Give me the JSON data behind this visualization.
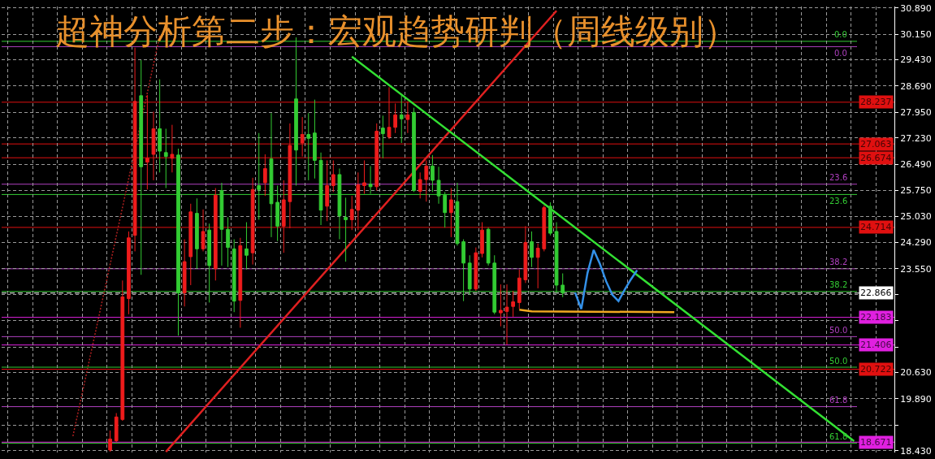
{
  "chart_data": {
    "type": "candlestick",
    "title": "超神分析第二步：宏观趋势研判（周线级别）",
    "categories": [
      null,
      null,
      null,
      null,
      null,
      null,
      null,
      null,
      null,
      null,
      null,
      null,
      null,
      null,
      null,
      null,
      null,
      null,
      null,
      null,
      null,
      null,
      null,
      null,
      null,
      null,
      null,
      null,
      null,
      null,
      null,
      null,
      null,
      null,
      null,
      null,
      null,
      null,
      null,
      null,
      null,
      null,
      null,
      null,
      null,
      null,
      null,
      null,
      null,
      null,
      null,
      null,
      null,
      null,
      null,
      null,
      null,
      null,
      null,
      null,
      null,
      null,
      null,
      null,
      null,
      null,
      null,
      null,
      null,
      null,
      null,
      null,
      null,
      null,
      null,
      null,
      null,
      null,
      null,
      null,
      null,
      null,
      null,
      null,
      null,
      null,
      null,
      null,
      null,
      null,
      null,
      null,
      null,
      null,
      null,
      null,
      null,
      null,
      null,
      null,
      null,
      null,
      null,
      null,
      null,
      null,
      null,
      null,
      null,
      null,
      null,
      null,
      null,
      null,
      null,
      null,
      null,
      null,
      null,
      null,
      null,
      null,
      null,
      null,
      null,
      null,
      null,
      null,
      null,
      null,
      null,
      null,
      null,
      null,
      null,
      null,
      null,
      null,
      null,
      null,
      null,
      null,
      null,
      null
    ],
    "ohlc": [
      null,
      null,
      null,
      null,
      null,
      null,
      null,
      null,
      null,
      null,
      null,
      null,
      null,
      null,
      null,
      null,
      null,
      [
        18.45,
        19.0,
        18.4,
        18.76
      ],
      [
        18.71,
        19.49,
        18.67,
        19.38
      ],
      [
        19.31,
        23.22,
        19.27,
        22.76
      ],
      [
        22.71,
        24.6,
        22.27,
        24.42
      ],
      [
        24.49,
        29.77,
        24.04,
        28.26
      ],
      [
        28.42,
        29.42,
        23.38,
        26.42
      ],
      [
        26.55,
        28.44,
        25.78,
        26.66
      ],
      [
        26.77,
        27.97,
        26.04,
        27.49
      ],
      [
        27.49,
        28.88,
        26.26,
        26.86
      ],
      [
        26.82,
        27.49,
        25.82,
        26.71
      ],
      [
        26.66,
        27.6,
        26.26,
        26.77
      ],
      [
        26.75,
        26.93,
        21.67,
        22.87
      ],
      [
        22.87,
        24.38,
        22.49,
        23.75
      ],
      [
        23.89,
        25.38,
        23.09,
        25.15
      ],
      [
        25.11,
        25.53,
        23.55,
        24.11
      ],
      [
        24.11,
        25.22,
        24.04,
        24.6
      ],
      [
        24.64,
        24.82,
        22.6,
        23.64
      ],
      [
        23.55,
        25.82,
        23.22,
        25.62
      ],
      [
        25.75,
        25.97,
        23.64,
        24.66
      ],
      [
        24.66,
        25.0,
        23.6,
        24.15
      ],
      [
        24.11,
        24.38,
        22.33,
        22.64
      ],
      [
        22.66,
        24.42,
        21.89,
        24.2
      ],
      [
        24.11,
        24.86,
        23.53,
        23.93
      ],
      [
        24.0,
        26.11,
        23.67,
        25.78
      ],
      [
        25.89,
        27.37,
        24.93,
        25.78
      ],
      [
        25.97,
        26.77,
        25.6,
        26.37
      ],
      [
        26.64,
        27.93,
        24.44,
        25.38
      ],
      [
        25.42,
        25.89,
        24.33,
        24.75
      ],
      [
        24.75,
        26.04,
        24.0,
        25.49
      ],
      [
        25.44,
        27.64,
        24.69,
        27.02
      ],
      [
        28.33,
        30.06,
        25.89,
        26.89
      ],
      [
        27.09,
        27.82,
        26.71,
        27.33
      ],
      [
        27.33,
        27.93,
        26.04,
        27.22
      ],
      [
        27.37,
        28.31,
        26.09,
        26.6
      ],
      [
        26.6,
        26.82,
        24.78,
        25.2
      ],
      [
        25.31,
        26.6,
        24.89,
        25.89
      ],
      [
        25.89,
        26.6,
        25.71,
        26.2
      ],
      [
        26.2,
        26.37,
        24.38,
        25.04
      ],
      [
        25.0,
        25.55,
        23.75,
        24.93
      ],
      [
        24.93,
        25.6,
        24.64,
        25.22
      ],
      [
        25.2,
        26.26,
        24.64,
        25.91
      ],
      [
        25.89,
        26.6,
        25.66,
        25.97
      ],
      [
        25.93,
        26.44,
        25.66,
        25.86
      ],
      [
        25.86,
        27.64,
        25.75,
        27.42
      ],
      [
        27.51,
        27.86,
        26.66,
        27.35
      ],
      [
        27.26,
        28.66,
        27.2,
        27.53
      ],
      [
        27.53,
        28.2,
        27.37,
        27.88
      ],
      [
        27.88,
        28.48,
        27.09,
        27.77
      ],
      [
        27.75,
        28.26,
        27.37,
        27.88
      ],
      [
        27.95,
        28.08,
        25.71,
        25.75
      ],
      [
        25.73,
        26.26,
        25.53,
        26.06
      ],
      [
        26.06,
        26.6,
        25.44,
        26.44
      ],
      [
        26.44,
        26.75,
        25.71,
        26.04
      ],
      [
        26.04,
        26.42,
        25.38,
        25.6
      ],
      [
        25.62,
        25.71,
        24.71,
        25.13
      ],
      [
        25.13,
        25.82,
        24.44,
        25.49
      ],
      [
        25.44,
        25.97,
        24.2,
        24.26
      ],
      [
        24.31,
        24.38,
        22.64,
        23.71
      ],
      [
        23.71,
        23.93,
        22.82,
        22.98
      ],
      [
        22.98,
        24.15,
        22.93,
        24.0
      ],
      [
        23.98,
        24.86,
        23.87,
        24.64
      ],
      [
        24.66,
        24.71,
        23.64,
        23.71
      ],
      [
        23.71,
        23.93,
        22.27,
        22.33
      ],
      [
        22.31,
        23.11,
        21.93,
        22.38
      ],
      [
        22.35,
        23.11,
        21.42,
        22.47
      ],
      [
        22.49,
        22.93,
        22.2,
        22.62
      ],
      [
        22.6,
        23.53,
        22.42,
        23.29
      ],
      [
        23.24,
        24.75,
        23.15,
        24.29
      ],
      [
        24.31,
        24.6,
        23.6,
        23.87
      ],
      [
        23.87,
        24.26,
        23.0,
        24.13
      ],
      [
        24.11,
        25.33,
        24.04,
        25.27
      ],
      [
        25.31,
        25.42,
        24.49,
        24.55
      ],
      [
        24.6,
        24.86,
        22.87,
        23.09
      ],
      [
        23.09,
        23.42,
        22.75,
        22.87
      ],
      null,
      null,
      null,
      null,
      null,
      null,
      null,
      null,
      null,
      null,
      null,
      null,
      null,
      null,
      null,
      null,
      null,
      null,
      null,
      null,
      null,
      null,
      null,
      null,
      null,
      null,
      null,
      null,
      null,
      null,
      null,
      null,
      null,
      null,
      null,
      null,
      null,
      null,
      null,
      null,
      null,
      null,
      null,
      null,
      null,
      null,
      null,
      null,
      null,
      null,
      null,
      null,
      null
    ],
    "colors": [
      null,
      null,
      null,
      null,
      null,
      null,
      null,
      null,
      null,
      null,
      null,
      null,
      null,
      null,
      null,
      null,
      null,
      "#ee1c1c",
      "#ee1c1c",
      "#ee1c1c",
      "#ee1c1c",
      "#ee1c1c",
      "#33cc33",
      "#ee1c1c",
      "#ee1c1c",
      "#33cc33",
      "#33cc33",
      "#ee1c1c",
      "#33cc33",
      "#ee1c1c",
      "#ee1c1c",
      "#33cc33",
      "#ee1c1c",
      "#33cc33",
      "#ee1c1c",
      "#33cc33",
      "#33cc33",
      "#33cc33",
      "#ee1c1c",
      "#33cc33",
      "#ee1c1c",
      "#33cc33",
      "#ee1c1c",
      "#33cc33",
      "#33cc33",
      "#ee1c1c",
      "#ee1c1c",
      "#33cc33",
      "#ee1c1c",
      "#33cc33",
      "#33cc33",
      "#33cc33",
      "#ee1c1c",
      "#ee1c1c",
      "#33cc33",
      "#33cc33",
      "#ee1c1c",
      "#ee1c1c",
      "#ee1c1c",
      "#33cc33",
      "#ee1c1c",
      "#33cc33",
      "#ee1c1c",
      "#ee1c1c",
      "#33cc33",
      "#ee1c1c",
      "#33cc33",
      "#ee1c1c",
      "#ee1c1c",
      "#33cc33",
      "#33cc33",
      "#33cc33",
      "#ee1c1c",
      "#33cc33",
      "#33cc33",
      "#33cc33",
      "#ee1c1c",
      "#ee1c1c",
      "#33cc33",
      "#33cc33",
      "#ee1c1c",
      "#ee1c1c",
      "#ee1c1c",
      "#ee1c1c",
      "#ee1c1c",
      "#33cc33",
      "#ee1c1c",
      "#ee1c1c",
      "#33cc33",
      "#33cc33",
      "#33cc33",
      null,
      null,
      null,
      null,
      null,
      null,
      null,
      null,
      null,
      null,
      null,
      null,
      null,
      null,
      null,
      null,
      null,
      null,
      null,
      null,
      null,
      null,
      null,
      null,
      null,
      null,
      null,
      null,
      null,
      null,
      null,
      null,
      null,
      null,
      null,
      null,
      null,
      null,
      null,
      null,
      null,
      null,
      null,
      null,
      null,
      null,
      null,
      null,
      null,
      null,
      null,
      null,
      null
    ],
    "series": [
      {
        "type": "line",
        "color": "#b02020",
        "line_style": "dotted",
        "values": [
          null,
          null,
          null,
          null,
          null,
          null,
          null,
          null,
          null,
          null,
          null,
          18.84,
          null,
          null,
          null,
          null,
          null,
          null,
          null,
          null,
          null,
          null,
          null,
          null,
          null,
          30.11,
          null,
          null,
          null,
          null,
          null,
          null,
          null,
          null,
          null,
          null,
          null,
          null,
          null,
          null,
          null,
          null,
          null,
          null,
          null,
          null,
          null,
          null,
          null,
          null,
          null,
          null,
          null,
          null,
          null,
          null,
          null,
          null,
          null,
          null,
          null,
          null,
          null,
          null,
          null,
          null,
          null,
          null,
          null,
          null,
          null,
          null,
          null,
          null,
          null,
          null,
          null,
          null,
          null,
          null,
          null,
          null,
          null,
          null,
          null,
          null,
          null,
          null,
          null,
          null,
          null,
          null,
          null,
          null,
          null,
          null,
          null,
          null,
          null,
          null,
          null,
          null,
          null,
          null,
          null,
          null,
          null,
          null,
          null,
          null,
          null,
          null,
          null,
          null,
          null,
          null,
          null,
          null,
          null,
          null,
          null,
          null,
          null,
          null,
          null,
          null,
          null,
          null,
          null,
          null,
          null,
          null,
          null,
          null,
          null,
          null,
          null,
          null,
          null,
          null,
          null,
          null,
          null,
          null
        ]
      },
      {
        "type": "line",
        "color": "#e02020",
        "line_style": "solid",
        "values": [
          null,
          null,
          null,
          null,
          null,
          null,
          null,
          null,
          null,
          null,
          null,
          null,
          null,
          null,
          null,
          null,
          null,
          null,
          null,
          null,
          null,
          null,
          null,
          null,
          null,
          null,
          18.4,
          null,
          null,
          null,
          null,
          null,
          null,
          null,
          null,
          null,
          null,
          null,
          null,
          null,
          null,
          null,
          null,
          null,
          null,
          null,
          null,
          null,
          null,
          null,
          null,
          null,
          null,
          null,
          null,
          null,
          null,
          null,
          null,
          null,
          null,
          null,
          null,
          null,
          null,
          null,
          null,
          null,
          null,
          null,
          null,
          null,
          null,
          null,
          null,
          null,
          null,
          null,
          null,
          null,
          null,
          null,
          null,
          null,
          null,
          null,
          null,
          null,
          null,
          30.81,
          null,
          null,
          null,
          null,
          null,
          null,
          null,
          null,
          null,
          null,
          null,
          null,
          null,
          null,
          null,
          null,
          null,
          null,
          null,
          null,
          null,
          null,
          null,
          null,
          null,
          null,
          null,
          null,
          null,
          null,
          null,
          null,
          null,
          null,
          null,
          null,
          null,
          null,
          null,
          null,
          null,
          null,
          null,
          null,
          null,
          null,
          null,
          null,
          null,
          null,
          null,
          null,
          null,
          null
        ]
      },
      {
        "type": "line",
        "color": "#33e033",
        "line_style": "solid",
        "values": [
          null,
          null,
          null,
          null,
          null,
          null,
          null,
          null,
          null,
          null,
          null,
          null,
          null,
          null,
          null,
          null,
          null,
          null,
          null,
          null,
          null,
          null,
          null,
          null,
          null,
          null,
          null,
          null,
          null,
          null,
          null,
          null,
          null,
          null,
          null,
          null,
          null,
          null,
          null,
          null,
          null,
          null,
          null,
          null,
          null,
          null,
          null,
          null,
          null,
          null,
          null,
          null,
          null,
          null,
          null,
          null,
          29.52,
          null,
          null,
          null,
          null,
          null,
          null,
          null,
          null,
          null,
          null,
          null,
          null,
          null,
          null,
          null,
          null,
          null,
          null,
          null,
          null,
          null,
          null,
          null,
          null,
          null,
          null,
          null,
          null,
          null,
          null,
          null,
          null,
          null,
          null,
          null,
          null,
          null,
          null,
          null,
          null,
          null,
          null,
          null,
          null,
          null,
          null,
          null,
          null,
          null,
          null,
          null,
          null,
          null,
          null,
          null,
          null,
          null,
          null,
          null,
          null,
          null,
          null,
          null,
          null,
          null,
          null,
          null,
          null,
          null,
          null,
          null,
          null,
          null,
          null,
          null,
          null,
          null,
          null,
          null,
          null,
          18.7,
          null,
          null,
          null,
          null,
          null,
          null
        ]
      },
      {
        "type": "line",
        "color": "#f0a820",
        "line_style": "solid",
        "values": [
          null,
          null,
          null,
          null,
          null,
          null,
          null,
          null,
          null,
          null,
          null,
          null,
          null,
          null,
          null,
          null,
          null,
          null,
          null,
          null,
          null,
          null,
          null,
          null,
          null,
          null,
          null,
          null,
          null,
          null,
          null,
          null,
          null,
          null,
          null,
          null,
          null,
          null,
          null,
          null,
          null,
          null,
          null,
          null,
          null,
          null,
          null,
          null,
          null,
          null,
          null,
          null,
          null,
          null,
          null,
          null,
          null,
          null,
          null,
          null,
          null,
          null,
          null,
          null,
          null,
          null,
          null,
          null,
          null,
          null,
          null,
          null,
          null,
          null,
          null,
          null,
          null,
          null,
          null,
          null,
          null,
          null,
          null,
          22.4,
          null,
          22.35,
          null,
          null,
          null,
          null,
          null,
          null,
          null,
          null,
          null,
          null,
          null,
          null,
          null,
          null,
          null,
          null,
          null,
          null,
          null,
          null,
          null,
          null,
          22.33,
          null,
          null,
          null,
          null,
          null,
          null,
          null,
          null,
          null,
          null,
          null,
          null,
          null,
          null,
          null,
          null,
          null,
          null,
          null,
          null,
          null,
          null,
          null,
          null,
          null,
          null,
          null,
          null,
          null,
          null,
          null,
          null,
          null,
          null,
          null
        ]
      },
      {
        "type": "line",
        "color": "#3390e8",
        "line_style": "solid",
        "values": [
          null,
          null,
          null,
          null,
          null,
          null,
          null,
          null,
          null,
          null,
          null,
          null,
          null,
          null,
          null,
          null,
          null,
          null,
          null,
          null,
          null,
          null,
          null,
          null,
          null,
          null,
          null,
          null,
          null,
          null,
          null,
          null,
          null,
          null,
          null,
          null,
          null,
          null,
          null,
          null,
          null,
          null,
          null,
          null,
          null,
          null,
          null,
          null,
          null,
          null,
          null,
          null,
          null,
          null,
          null,
          null,
          null,
          null,
          null,
          null,
          null,
          null,
          null,
          null,
          null,
          null,
          null,
          null,
          null,
          null,
          null,
          null,
          null,
          null,
          null,
          null,
          null,
          null,
          null,
          null,
          null,
          null,
          null,
          null,
          null,
          null,
          null,
          null,
          null,
          null,
          null,
          null,
          22.88,
          22.42,
          23.43,
          24.08,
          23.69,
          23.2,
          22.82,
          22.64,
          22.96,
          23.25,
          23.51,
          null,
          null,
          null,
          null,
          null,
          null,
          null,
          null,
          null,
          null,
          null,
          null,
          null,
          null,
          null,
          null,
          null,
          null,
          null,
          null,
          null,
          null,
          null,
          null,
          null,
          null,
          null,
          null,
          null,
          null,
          null,
          null,
          null,
          null,
          null,
          null,
          null,
          null,
          null,
          null,
          null
        ]
      }
    ],
    "ylim": [
      18.38,
      30.93
    ],
    "yticks": [
      {
        "value": 30.89,
        "label": "30.890"
      },
      {
        "value": 30.15,
        "label": "30.150"
      },
      {
        "value": 29.43,
        "label": "29.430"
      },
      {
        "value": 28.69,
        "label": "28.690"
      },
      {
        "value": 27.95,
        "label": "27.950"
      },
      {
        "value": 27.23,
        "label": "27.230"
      },
      {
        "value": 26.49,
        "label": "26.490"
      },
      {
        "value": 25.75,
        "label": "25.750"
      },
      {
        "value": 25.03,
        "label": "25.030"
      },
      {
        "value": 24.29,
        "label": "24.290"
      },
      {
        "value": 23.55,
        "label": "23.550"
      },
      {
        "value": 22.83,
        "label": null
      },
      {
        "value": 22.09,
        "label": null
      },
      {
        "value": 21.35,
        "label": null
      },
      {
        "value": 20.63,
        "label": "20.630"
      },
      {
        "value": 19.89,
        "label": "19.890"
      },
      {
        "value": 19.15,
        "label": null
      },
      {
        "value": 18.43,
        "label": "18.430"
      }
    ],
    "ref_lines": [
      {
        "axis": "y",
        "value": 29.95,
        "color": "#33cc33"
      },
      {
        "axis": "y",
        "value": 29.8,
        "color": "#b040c0"
      },
      {
        "axis": "y",
        "value": 25.93,
        "color": "#b040c0"
      },
      {
        "axis": "y",
        "value": 25.64,
        "color": "#33cc33"
      },
      {
        "axis": "y",
        "value": 23.55,
        "color": "#b040c0"
      },
      {
        "axis": "y",
        "value": 22.91,
        "color": "#33cc33"
      },
      {
        "axis": "y",
        "value": 21.64,
        "color": "#b040c0"
      },
      {
        "axis": "y",
        "value": 20.78,
        "color": "#33cc33"
      },
      {
        "axis": "y",
        "value": 19.67,
        "color": "#b040c0"
      },
      {
        "axis": "y",
        "value": 18.64,
        "color": "#33cc33"
      },
      {
        "axis": "y",
        "value": 28.237,
        "label": "28.237",
        "color": "#e01010"
      },
      {
        "axis": "y",
        "value": 27.063,
        "label": "27.063",
        "color": "#e01010"
      },
      {
        "axis": "y",
        "value": 26.674,
        "label": "26.674",
        "color": "#e01010"
      },
      {
        "axis": "y",
        "value": 24.714,
        "label": "24.714",
        "color": "#e01010"
      },
      {
        "axis": "y",
        "value": 22.866,
        "label": "22.866",
        "color": "#ffffff",
        "line_style": "dashed"
      },
      {
        "axis": "y",
        "value": 22.183,
        "label": "22.183",
        "color": "#e020e0"
      },
      {
        "axis": "y",
        "value": 21.406,
        "label": "21.406",
        "color": "#e020e0"
      },
      {
        "axis": "y",
        "value": 20.722,
        "label": "20.722",
        "color": "#e01010"
      },
      {
        "axis": "y",
        "value": 18.671,
        "label": "18.671",
        "color": "#e020e0"
      }
    ],
    "annotations": [
      "0.0",
      "0.0",
      "23.6",
      "23.6",
      "38.2",
      "38.2",
      "50.0",
      "50.0",
      "61.8",
      "61.8"
    ],
    "grid": true,
    "tick_labels": "y"
  }
}
